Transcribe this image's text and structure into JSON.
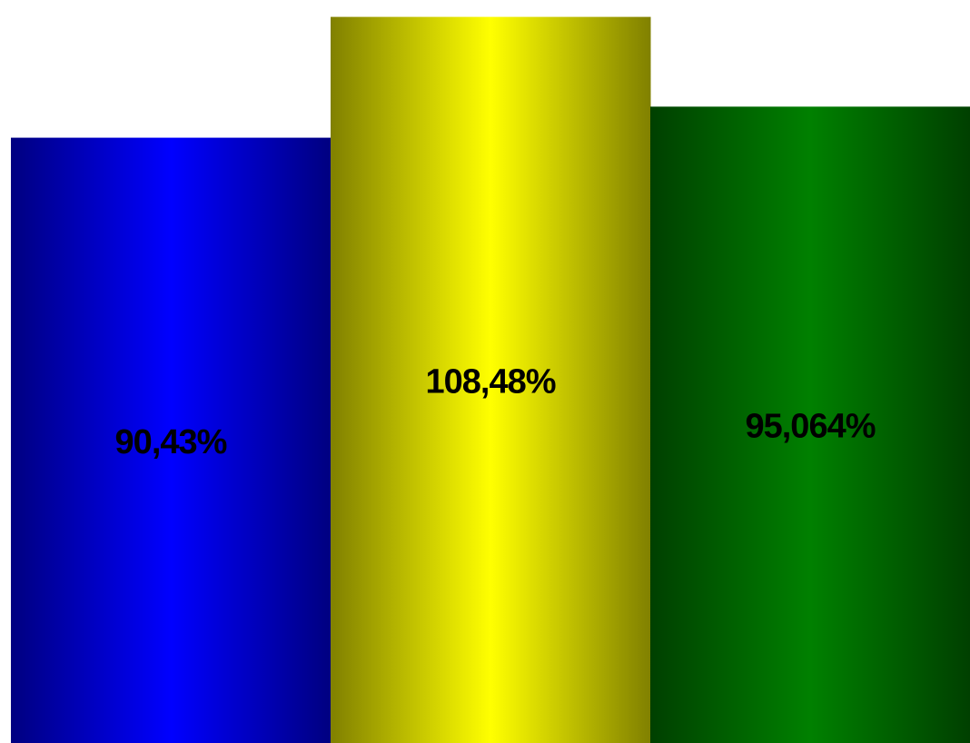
{
  "chart_data": {
    "type": "bar",
    "categories": [
      "",
      "",
      ""
    ],
    "values": [
      90.43,
      108.48,
      95.064
    ],
    "labels": [
      "90,43%",
      "108,48%",
      "95,064%"
    ],
    "colors": [
      "#0000ff",
      "#ffff00",
      "#008000"
    ],
    "edge_colors": [
      "#000080",
      "#808000",
      "#004000"
    ],
    "ylim": [
      0,
      111
    ],
    "title": "",
    "xlabel": "",
    "ylabel": "",
    "grid": false,
    "legend": "none"
  }
}
